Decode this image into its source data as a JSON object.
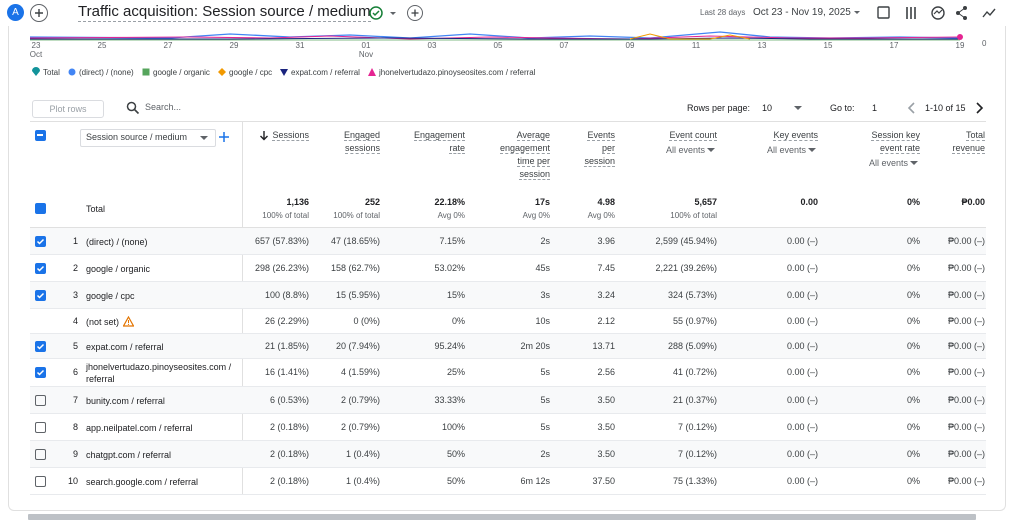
{
  "header": {
    "avatar": "A",
    "title": "Traffic acquisition: Session source / medium",
    "date_label": "Last 28 days",
    "date_range": "Oct 23 - Nov 19, 2025"
  },
  "chart": {
    "x_labels": [
      {
        "day": "23",
        "month": "Oct"
      },
      {
        "day": "25"
      },
      {
        "day": "27"
      },
      {
        "day": "29"
      },
      {
        "day": "31"
      },
      {
        "day": "01",
        "month": "Nov"
      },
      {
        "day": "03"
      },
      {
        "day": "05"
      },
      {
        "day": "07"
      },
      {
        "day": "09"
      },
      {
        "day": "11"
      },
      {
        "day": "13"
      },
      {
        "day": "15"
      },
      {
        "day": "17"
      },
      {
        "day": "19"
      }
    ],
    "y_label": "0",
    "legend": [
      {
        "name": "Total",
        "color": "#12939a",
        "marker": "drop"
      },
      {
        "name": "(direct) / (none)",
        "color": "#4285f4",
        "marker": "circle"
      },
      {
        "name": "google / organic",
        "color": "#56a55c",
        "marker": "square"
      },
      {
        "name": "google / cpc",
        "color": "#f29900",
        "marker": "diamond"
      },
      {
        "name": "expat.com / referral",
        "color": "#1a237e",
        "marker": "triangle-down"
      },
      {
        "name": "jhonelvertudazo.pinoyseosites.com / referral",
        "color": "#e52592",
        "marker": "triangle-up"
      }
    ]
  },
  "toolbar": {
    "plot_rows": "Plot rows",
    "search": "Search...",
    "rows_per_page_label": "Rows per page:",
    "rows_per_page": "10",
    "go_to_label": "Go to:",
    "go_to": "1",
    "range": "1-10 of 15"
  },
  "table": {
    "dimension_header": "Session source / medium",
    "columns": [
      {
        "label": [
          "Sessions"
        ],
        "sorted": true
      },
      {
        "label": [
          "Engaged",
          "sessions"
        ]
      },
      {
        "label": [
          "Engagement",
          "rate"
        ]
      },
      {
        "label": [
          "Average",
          "engagement",
          "time per",
          "session"
        ]
      },
      {
        "label": [
          "Events",
          "per",
          "session"
        ]
      },
      {
        "label": [
          "Event count"
        ],
        "filter": "All events"
      },
      {
        "label": [
          "Key events"
        ],
        "filter": "All events"
      },
      {
        "label": [
          "Session key",
          "event rate"
        ],
        "filter": "All events"
      },
      {
        "label": [
          "Total",
          "revenue"
        ]
      }
    ],
    "totals": {
      "label": "Total",
      "cells": [
        {
          "value": "1,136",
          "note": "100% of total"
        },
        {
          "value": "252",
          "note": "100% of total"
        },
        {
          "value": "22.18%",
          "note": "Avg 0%"
        },
        {
          "value": "17s",
          "note": "Avg 0%"
        },
        {
          "value": "4.98",
          "note": "Avg 0%"
        },
        {
          "value": "5,657",
          "note": "100% of total"
        },
        {
          "value": "0.00"
        },
        {
          "value": "0%"
        },
        {
          "value": "₱0.00"
        }
      ]
    },
    "rows": [
      {
        "index": "1",
        "name": "(direct) / (none)",
        "checkbox": "checked",
        "cells": [
          "657 (57.83%)",
          "47 (18.65%)",
          "7.15%",
          "2s",
          "3.96",
          "2,599 (45.94%)",
          "0.00 (–)",
          "0%",
          "₱0.00 (–)"
        ]
      },
      {
        "index": "2",
        "name": "google / organic",
        "checkbox": "checked",
        "cells": [
          "298 (26.23%)",
          "158 (62.7%)",
          "53.02%",
          "45s",
          "7.45",
          "2,221 (39.26%)",
          "0.00 (–)",
          "0%",
          "₱0.00 (–)"
        ]
      },
      {
        "index": "3",
        "name": "google / cpc",
        "checkbox": "checked",
        "cells": [
          "100 (8.8%)",
          "15 (5.95%)",
          "15%",
          "3s",
          "3.24",
          "324 (5.73%)",
          "0.00 (–)",
          "0%",
          "₱0.00 (–)"
        ]
      },
      {
        "index": "4",
        "name": "(not set)",
        "checkbox": "none",
        "warning": true,
        "cells": [
          "26 (2.29%)",
          "0 (0%)",
          "0%",
          "10s",
          "2.12",
          "55 (0.97%)",
          "0.00 (–)",
          "0%",
          "₱0.00 (–)"
        ]
      },
      {
        "index": "5",
        "name": "expat.com / referral",
        "checkbox": "checked",
        "cells": [
          "21 (1.85%)",
          "20 (7.94%)",
          "95.24%",
          "2m 20s",
          "13.71",
          "288 (5.09%)",
          "0.00 (–)",
          "0%",
          "₱0.00 (–)"
        ]
      },
      {
        "index": "6",
        "name": "jhonelvertudazo.pinoyseosites.com / referral",
        "checkbox": "checked",
        "cells": [
          "16 (1.41%)",
          "4 (1.59%)",
          "25%",
          "5s",
          "2.56",
          "41 (0.72%)",
          "0.00 (–)",
          "0%",
          "₱0.00 (–)"
        ]
      },
      {
        "index": "7",
        "name": "bunity.com / referral",
        "checkbox": "unchecked",
        "cells": [
          "6 (0.53%)",
          "2 (0.79%)",
          "33.33%",
          "5s",
          "3.50",
          "21 (0.37%)",
          "0.00 (–)",
          "0%",
          "₱0.00 (–)"
        ]
      },
      {
        "index": "8",
        "name": "app.neilpatel.com / referral",
        "checkbox": "unchecked",
        "cells": [
          "2 (0.18%)",
          "2 (0.79%)",
          "100%",
          "5s",
          "3.50",
          "7 (0.12%)",
          "0.00 (–)",
          "0%",
          "₱0.00 (–)"
        ]
      },
      {
        "index": "9",
        "name": "chatgpt.com / referral",
        "checkbox": "unchecked",
        "cells": [
          "2 (0.18%)",
          "1 (0.4%)",
          "50%",
          "2s",
          "3.50",
          "7 (0.12%)",
          "0.00 (–)",
          "0%",
          "₱0.00 (–)"
        ]
      },
      {
        "index": "10",
        "name": "search.google.com / referral",
        "checkbox": "unchecked",
        "cells": [
          "2 (0.18%)",
          "1 (0.4%)",
          "50%",
          "6m 12s",
          "37.50",
          "75 (1.33%)",
          "0.00 (–)",
          "0%",
          "₱0.00 (–)"
        ]
      }
    ]
  }
}
